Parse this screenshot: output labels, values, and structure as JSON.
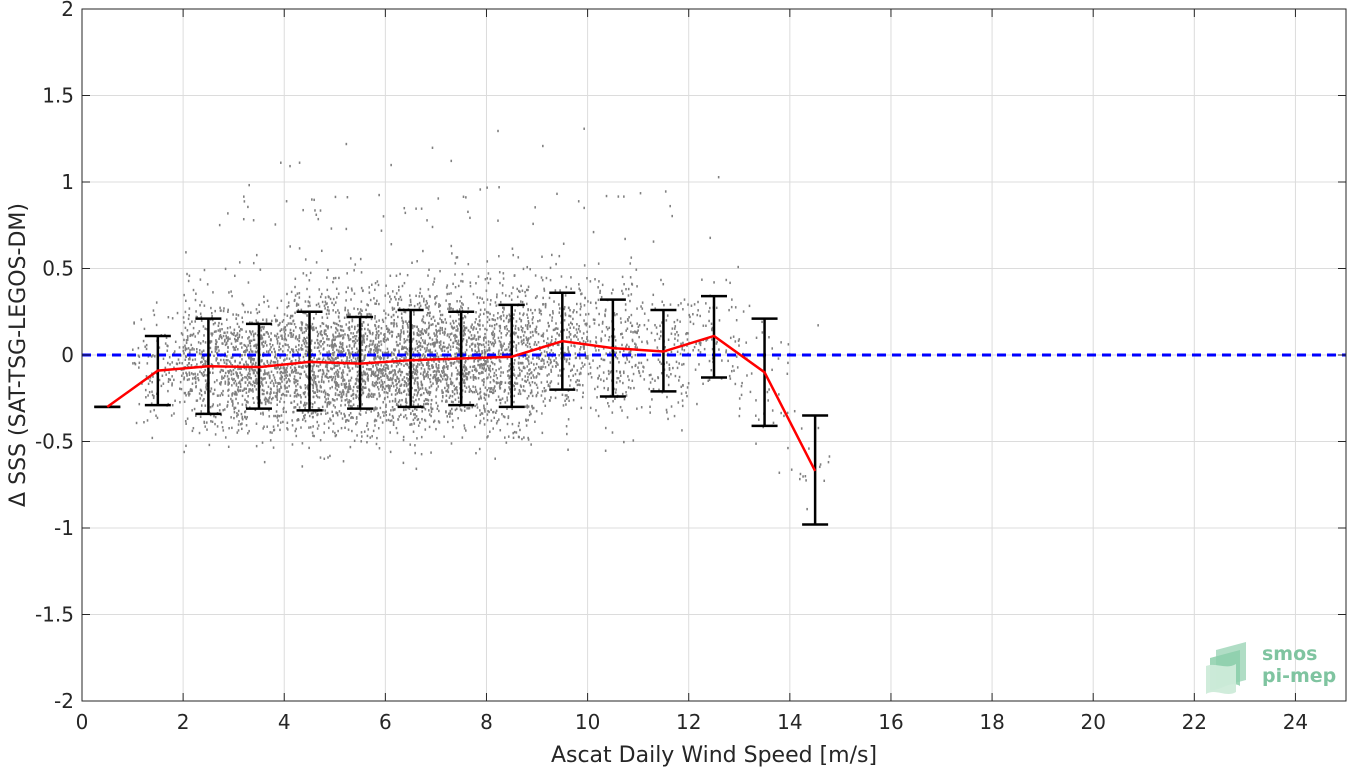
{
  "chart_data": {
    "type": "scatter",
    "xlabel": "Ascat Daily Wind Speed [m/s]",
    "ylabel": "Δ SSS (SAT-TSG-LEGOS-DM)",
    "xlim": [
      0,
      25
    ],
    "ylim": [
      -2,
      2
    ],
    "x_ticks": [
      0,
      2,
      4,
      6,
      8,
      10,
      12,
      14,
      16,
      18,
      20,
      22,
      24
    ],
    "y_ticks": [
      -2,
      -1.5,
      -1,
      -0.5,
      0,
      0.5,
      1,
      1.5,
      2
    ],
    "y_tick_labels": [
      "-2",
      "-1.5",
      "-1",
      "-0.5",
      "0",
      "0.5",
      "1",
      "1.5",
      "2"
    ],
    "grid": true,
    "series": [
      {
        "kind": "scatter",
        "color": "#808080",
        "x_range": [
          1.0,
          14.8
        ],
        "description_values": "dense point cloud of individual differences"
      },
      {
        "kind": "errorbar",
        "color": "#000000",
        "x": [
          0.5,
          1.5,
          2.5,
          3.5,
          4.5,
          5.5,
          6.5,
          7.5,
          8.5,
          9.5,
          10.5,
          11.5,
          12.5,
          13.5,
          14.5
        ],
        "mean": [
          -0.3,
          -0.09,
          -0.065,
          -0.07,
          -0.04,
          -0.05,
          -0.03,
          -0.02,
          -0.01,
          0.08,
          0.04,
          0.02,
          0.11,
          -0.1,
          -0.67
        ],
        "lower": [
          -0.3,
          -0.29,
          -0.34,
          -0.31,
          -0.32,
          -0.31,
          -0.3,
          -0.29,
          -0.3,
          -0.2,
          -0.24,
          -0.21,
          -0.13,
          -0.41,
          -0.98
        ],
        "upper": [
          -0.3,
          0.11,
          0.21,
          0.18,
          0.25,
          0.22,
          0.26,
          0.25,
          0.29,
          0.36,
          0.32,
          0.26,
          0.34,
          0.21,
          -0.35
        ]
      },
      {
        "kind": "line",
        "color": "#ff0000",
        "x": [
          0.5,
          1.5,
          2.5,
          3.5,
          4.5,
          5.5,
          6.5,
          7.5,
          8.5,
          9.5,
          10.5,
          11.5,
          12.5,
          13.5,
          14.5
        ],
        "y": [
          -0.3,
          -0.09,
          -0.065,
          -0.07,
          -0.04,
          -0.05,
          -0.03,
          -0.02,
          -0.01,
          0.08,
          0.04,
          0.02,
          0.11,
          -0.1,
          -0.67
        ]
      },
      {
        "kind": "reference-line",
        "color": "#0000ff",
        "style": "dashed",
        "y": 0
      }
    ]
  },
  "logo": {
    "line1": "smos",
    "line2": "pi-mep",
    "color": "#7fc4a0"
  }
}
